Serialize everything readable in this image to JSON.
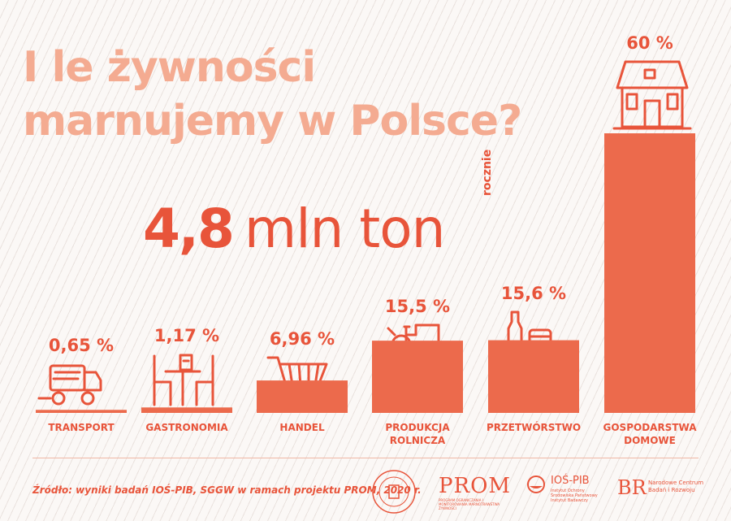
{
  "title": [
    "I le żywności",
    "marnujemy w Polsce?"
  ],
  "headline": {
    "value": "4,8",
    "unit": "mln ton",
    "period": "rocznie"
  },
  "colors": {
    "accent": "#e8543a",
    "bar": "#ec6a4c",
    "title": "#f4ab91"
  },
  "chart_data": {
    "type": "bar",
    "categories": [
      "TRANSPORT",
      "GASTRONOMIA",
      "HANDEL",
      "PRODUKCJA ROLNICZA",
      "PRZETWÓRSTWO",
      "GOSPODARSTWA DOMOWE"
    ],
    "category_lines": [
      [
        "TRANSPORT"
      ],
      [
        "GASTRONOMIA"
      ],
      [
        "HANDEL"
      ],
      [
        "PRODUKCJA",
        "ROLNICZA"
      ],
      [
        "PRZETWÓRSTWO"
      ],
      [
        "GOSPODARSTWA",
        "DOMOWE"
      ]
    ],
    "values": [
      0.65,
      1.17,
      6.96,
      15.5,
      15.6,
      60
    ],
    "value_labels": [
      "0,65 %",
      "1,17 %",
      "6,96 %",
      "15,5 %",
      "15,6 %",
      "60 %"
    ],
    "icons": [
      "truck-icon",
      "cafe-table-icon",
      "shopping-cart-icon",
      "tractor-icon",
      "bottle-and-can-icon",
      "house-icon"
    ],
    "ylim": [
      0,
      60
    ],
    "grid": false,
    "title": "",
    "xlabel": "",
    "ylabel": ""
  },
  "source": "Źródło: wyniki badań IOŚ-PIB, SGGW w ramach projektu PROM, 2020 r.",
  "logos": [
    {
      "name": "JEDZ BEZ WYRZUCANIA"
    },
    {
      "name": "PROM",
      "sub": "PROGRAM OGRANICZANIA I MONITOROWANIA MARNOTRAWSTWA ŻYWNOŚCI"
    },
    {
      "name": "IOŚ-PIB",
      "sub": "Instytut Ochrony Środowiska Państwowy Instytut Badawczy"
    },
    {
      "name": "BR",
      "sub": "Narodowe Centrum Badań i Rozwoju"
    }
  ]
}
